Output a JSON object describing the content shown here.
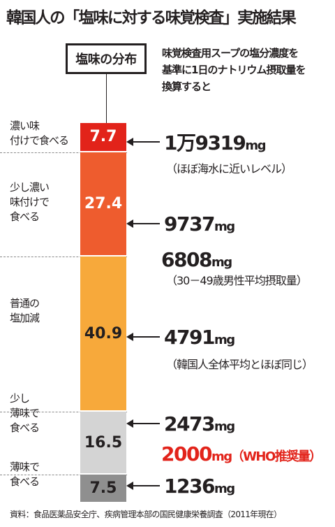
{
  "title": "韓国人の「塩味に対する味覚検査」実施結果",
  "legend_label": "塩味の分布",
  "note": "味覚検査用スープの塩分濃度を\n基準に1日のナトリウム摂取量を\n換算すると",
  "categories": [
    {
      "label": "濃い味\n付けで食べる",
      "value": "7.7",
      "color": "#e2231a",
      "text_color": "#ffffff"
    },
    {
      "label": "少し濃い\n味付けで\n食べる",
      "value": "27.4",
      "color": "#ee5c2e",
      "text_color": "#ffffff"
    },
    {
      "label": "普通の\n塩加減",
      "value": "40.9",
      "color": "#f7a93b",
      "text_color": "#231f20"
    },
    {
      "label": "少し\n薄味で\n食べる",
      "value": "16.5",
      "color": "#d4d4d4",
      "text_color": "#231f20"
    },
    {
      "label": "薄味で\n食べる",
      "value": "7.5",
      "color": "#8f8f8f",
      "text_color": "#231f20"
    }
  ],
  "annotations": [
    {
      "num": "1万9319",
      "unit": "mg",
      "sub": "（ほぼ海水に近いレベル）",
      "arrow": true,
      "color": "#231f20"
    },
    {
      "num": "9737",
      "unit": "mg",
      "sub": "",
      "arrow": true,
      "color": "#231f20"
    },
    {
      "num": "6808",
      "unit": "mg",
      "sub": "（30－49歳男性平均摂取量）",
      "arrow": false,
      "color": "#231f20"
    },
    {
      "num": "4791",
      "unit": "mg",
      "sub": "（韓国人全体平均とほぼ同じ）",
      "arrow": true,
      "color": "#231f20"
    },
    {
      "num": "2473",
      "unit": "mg",
      "sub": "",
      "arrow": true,
      "color": "#231f20"
    },
    {
      "num": "2000",
      "unit": "mg（WHO推奨量）",
      "sub": "",
      "arrow": false,
      "color": "#e2231a"
    },
    {
      "num": "1236",
      "unit": "mg",
      "sub": "",
      "arrow": true,
      "color": "#231f20"
    }
  ],
  "source": "資料：食品医薬品安全庁、疾病管理本部の国民健康栄養調査（2011年現在）",
  "chart_data": {
    "type": "bar",
    "title": "韓国人の「塩味に対する味覚検査」実施結果",
    "orientation": "stacked-vertical",
    "categories": [
      "濃い味付けで食べる",
      "少し濃い味付けで食べる",
      "普通の塩加減",
      "少し薄味で食べる",
      "薄味で食べる"
    ],
    "values": [
      7.7,
      27.4,
      40.9,
      16.5,
      7.5
    ],
    "sodium_mg": [
      19319,
      9737,
      4791,
      2473,
      1236
    ],
    "reference_mg": [
      {
        "label": "30－49歳男性平均摂取量",
        "value": 6808
      },
      {
        "label": "WHO推奨量",
        "value": 2000
      }
    ]
  }
}
